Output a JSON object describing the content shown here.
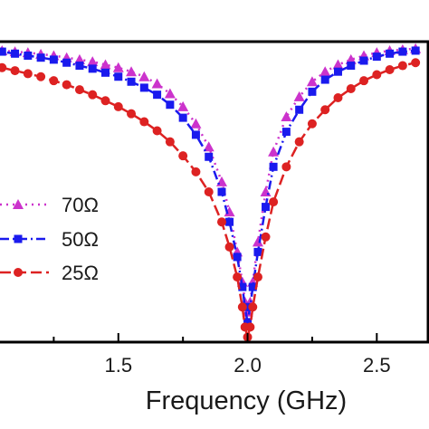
{
  "chart_data": {
    "type": "line",
    "title": "",
    "xlabel": "Frequency (GHz)",
    "ylabel": "",
    "xlim": [
      1.0,
      2.66
    ],
    "ylim": [
      -30,
      0
    ],
    "grid": false,
    "legend": "bottom-left",
    "x_ticks": [
      {
        "value": 1.5,
        "label": "1.5"
      },
      {
        "value": 2.0,
        "label": "2.0"
      },
      {
        "value": 2.5,
        "label": "2.5"
      }
    ],
    "series": [
      {
        "name": "70Ω",
        "color": "#cc33cc",
        "marker": "triangle",
        "dash": "2,5",
        "x": [
          1.0,
          1.05,
          1.1,
          1.15,
          1.2,
          1.25,
          1.3,
          1.35,
          1.4,
          1.45,
          1.5,
          1.55,
          1.6,
          1.65,
          1.7,
          1.75,
          1.8,
          1.85,
          1.9,
          1.93,
          1.96,
          1.98,
          1.99,
          2.0,
          2.01,
          2.02,
          2.04,
          2.07,
          2.1,
          2.15,
          2.2,
          2.25,
          2.3,
          2.35,
          2.4,
          2.45,
          2.5,
          2.55,
          2.6,
          2.65
        ],
        "y": [
          -0.8,
          -0.9,
          -1.0,
          -1.1,
          -1.25,
          -1.4,
          -1.6,
          -1.8,
          -2.0,
          -2.3,
          -2.6,
          -3.0,
          -3.5,
          -4.2,
          -5.2,
          -6.5,
          -8.2,
          -10.5,
          -14,
          -17,
          -21,
          -24,
          -26,
          -27,
          -26,
          -24,
          -20,
          -15,
          -11,
          -7.5,
          -5.5,
          -4,
          -3,
          -2.3,
          -1.8,
          -1.4,
          -1.1,
          -0.9,
          -0.8,
          -0.7
        ]
      },
      {
        "name": "50Ω",
        "color": "#1a1aee",
        "marker": "square",
        "dash": "10,4,2,4",
        "x": [
          1.0,
          1.05,
          1.1,
          1.15,
          1.2,
          1.25,
          1.3,
          1.35,
          1.4,
          1.45,
          1.5,
          1.55,
          1.6,
          1.65,
          1.7,
          1.75,
          1.8,
          1.85,
          1.9,
          1.93,
          1.96,
          1.98,
          1.99,
          2.0,
          2.01,
          2.02,
          2.04,
          2.07,
          2.1,
          2.15,
          2.2,
          2.25,
          2.3,
          2.35,
          2.4,
          2.45,
          2.5,
          2.55,
          2.6,
          2.65
        ],
        "y": [
          -0.9,
          -1.0,
          -1.2,
          -1.4,
          -1.6,
          -1.8,
          -2.1,
          -2.4,
          -2.7,
          -3.1,
          -3.5,
          -4.0,
          -4.6,
          -5.3,
          -6.3,
          -7.6,
          -9.3,
          -11.5,
          -15,
          -18,
          -21.5,
          -24.5,
          -26.5,
          -28,
          -26.5,
          -24.5,
          -21,
          -16.5,
          -12.5,
          -9,
          -6.8,
          -5,
          -3.8,
          -3,
          -2.4,
          -1.9,
          -1.5,
          -1.2,
          -1.0,
          -0.9
        ]
      },
      {
        "name": "25Ω",
        "color": "#dd2222",
        "marker": "circle",
        "dash": "12,5",
        "x": [
          1.0,
          1.05,
          1.1,
          1.15,
          1.2,
          1.25,
          1.3,
          1.35,
          1.4,
          1.45,
          1.5,
          1.55,
          1.6,
          1.65,
          1.7,
          1.75,
          1.8,
          1.85,
          1.9,
          1.93,
          1.96,
          1.98,
          1.99,
          2.0,
          2.01,
          2.02,
          2.04,
          2.07,
          2.1,
          2.15,
          2.2,
          2.25,
          2.3,
          2.35,
          2.4,
          2.45,
          2.5,
          2.55,
          2.6,
          2.65
        ],
        "y": [
          -2.4,
          -2.6,
          -2.9,
          -3.2,
          -3.5,
          -3.9,
          -4.3,
          -4.8,
          -5.3,
          -5.9,
          -6.5,
          -7.2,
          -8.0,
          -8.9,
          -10.0,
          -11.4,
          -13.0,
          -15.0,
          -18.0,
          -20.5,
          -23.5,
          -26.5,
          -28.5,
          -29.5,
          -28.5,
          -26.5,
          -23.5,
          -19.5,
          -16.0,
          -12.5,
          -10.0,
          -8.2,
          -6.8,
          -5.6,
          -4.7,
          -3.9,
          -3.3,
          -2.8,
          -2.4,
          -2.1
        ]
      }
    ]
  }
}
